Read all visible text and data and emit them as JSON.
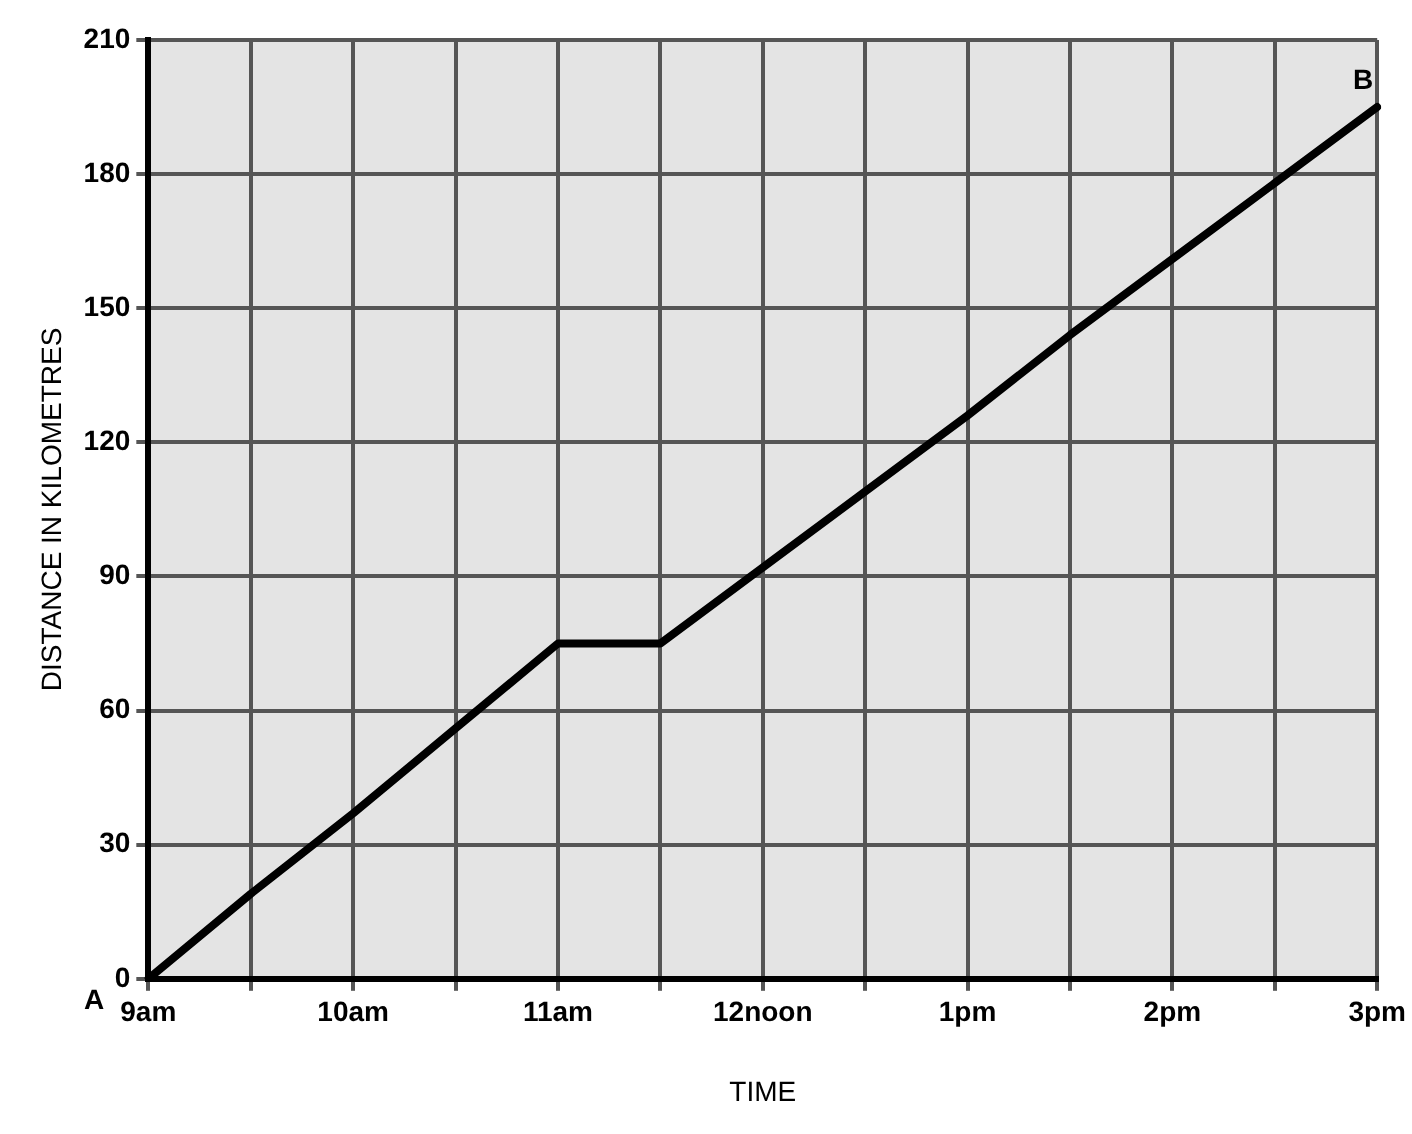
{
  "chart_data": {
    "type": "line",
    "xlabel": "TIME",
    "ylabel": "DISTANCE IN KILOMETRES",
    "categories": [
      "9am",
      null,
      "10am",
      null,
      "11am",
      null,
      "12noon",
      null,
      "1pm",
      null,
      "2pm",
      null,
      "3pm"
    ],
    "values": [
      0,
      19,
      37,
      56,
      75,
      75,
      92,
      109,
      126,
      144,
      161,
      178,
      195
    ],
    "color": "#000000",
    "ylim": [
      0,
      210
    ],
    "yticks": [
      0,
      30,
      60,
      90,
      120,
      150,
      180,
      210
    ],
    "grid": true,
    "marker": "none",
    "annotations": [
      {
        "text": "A",
        "x": "9am",
        "y": 0
      },
      {
        "text": "B",
        "x": "3pm",
        "y": 195
      }
    ]
  }
}
